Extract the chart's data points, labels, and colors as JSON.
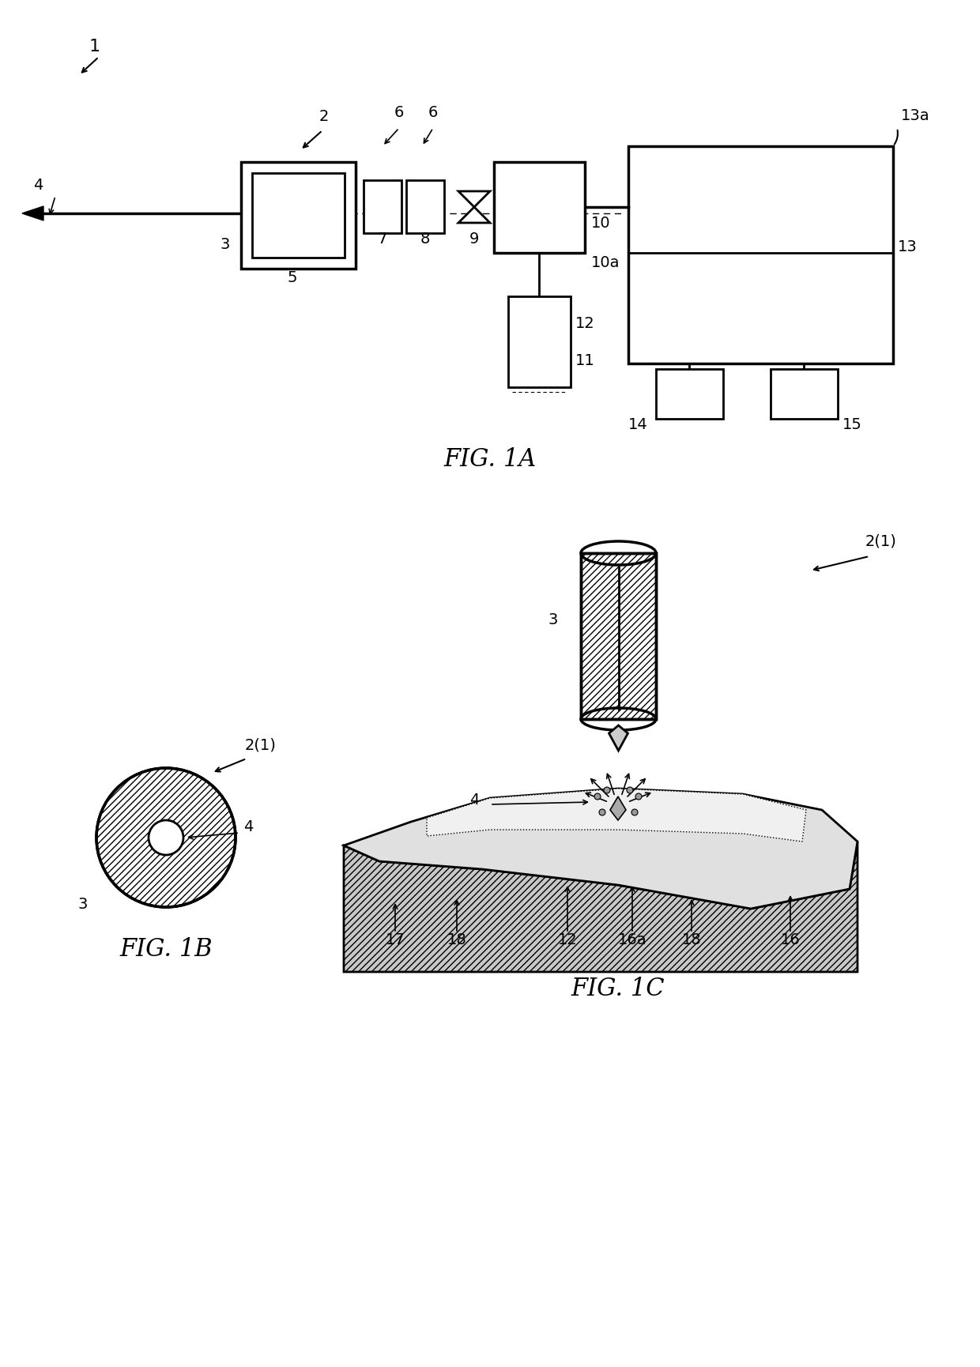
{
  "bg_color": "#ffffff",
  "fig1a_title": "FIG. 1A",
  "fig1b_title": "FIG. 1B",
  "fig1c_title": "FIG. 1C",
  "label_1": "1",
  "label_2": "2",
  "label_3": "3",
  "label_4": "4",
  "label_5": "5",
  "label_6a": "6",
  "label_6b": "6",
  "label_7": "7",
  "label_8": "8",
  "label_9": "9",
  "label_10": "10",
  "label_10a": "10a",
  "label_11": "11",
  "label_12": "12",
  "label_13": "13",
  "label_13a": "13a",
  "label_14": "14",
  "label_15": "15",
  "label_16": "16",
  "label_16a": "16a",
  "label_17": "17",
  "label_18a": "18",
  "label_18b": "18",
  "label_2_1a": "2(1)",
  "label_2_1b": "2(1)"
}
